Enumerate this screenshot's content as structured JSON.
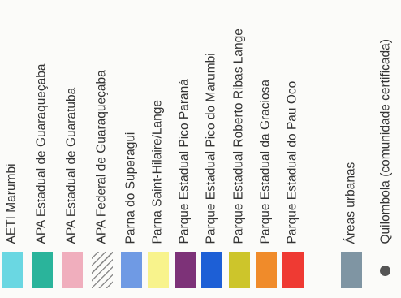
{
  "legend": {
    "entries": [
      {
        "label": "AETI Marumbi",
        "color": "#6ad7e2",
        "pattern": "solid",
        "name": "aeti-marumbi"
      },
      {
        "label": "APA Estadual de Guaraqueçaba",
        "color": "#2ab49b",
        "pattern": "solid",
        "name": "apa-estadual-guaraquecaba"
      },
      {
        "label": "APA Estadual de Guaratuba",
        "color": "#f0aebd",
        "pattern": "solid",
        "name": "apa-estadual-guaratuba"
      },
      {
        "label": "APA Federal de Guaraqueçaba",
        "color": "#8e8e8e",
        "pattern": "hatch",
        "name": "apa-federal-guaraquecaba"
      },
      {
        "label": "Parna  do Superagui",
        "color": "#6f9ae4",
        "pattern": "solid",
        "name": "parna-superagui"
      },
      {
        "label": "Parna Saint-Hilaire/Lange",
        "color": "#f8f38c",
        "pattern": "solid",
        "name": "parna-saint-hilaire-lange"
      },
      {
        "label": "Parque Estadual Pico Paraná",
        "color": "#7d3278",
        "pattern": "solid",
        "name": "parque-pico-parana"
      },
      {
        "label": "Parque Estadual Pico do Marumbi",
        "color": "#1d5fd6",
        "pattern": "solid",
        "name": "parque-pico-marumbi"
      },
      {
        "label": "Parque Estadual Roberto Ribas Lange",
        "color": "#cdc52b",
        "pattern": "solid",
        "name": "parque-roberto-ribas-lange"
      },
      {
        "label": "Parque Estadual da Graciosa",
        "color": "#f08b2a",
        "pattern": "solid",
        "name": "parque-graciosa"
      },
      {
        "label": "Parque Estadual do Pau Oco",
        "color": "#ef3a33",
        "pattern": "solid",
        "name": "parque-pau-oco"
      },
      {
        "label": "Áreas urbanas",
        "color": "#7f95a3",
        "pattern": "solid",
        "name": "areas-urbanas"
      },
      {
        "label": "Quilombola (comunidade certificada)",
        "color": "#555555",
        "pattern": "dot",
        "name": "quilombola"
      }
    ]
  }
}
